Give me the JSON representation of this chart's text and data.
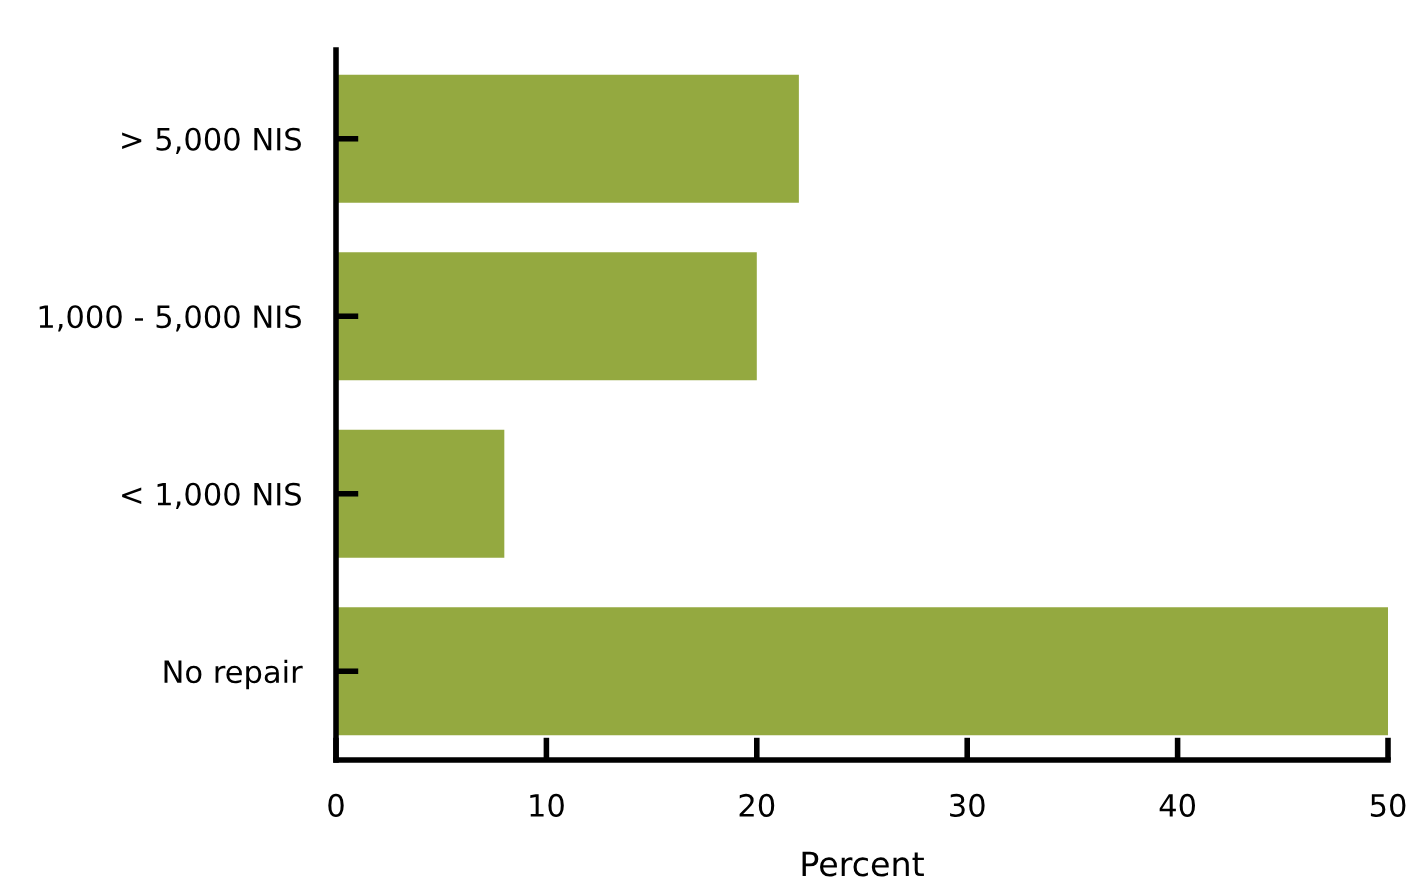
{
  "chart_data": {
    "type": "bar",
    "orientation": "horizontal",
    "xlabel": "Percent",
    "categories": [
      "> 5,000 NIS",
      "1,000 - 5,000 NIS",
      "< 1,000 NIS",
      "No repair"
    ],
    "values": [
      22,
      20,
      8,
      50
    ],
    "color": "#94a940",
    "xlim": [
      0,
      50
    ],
    "xticks": [
      0,
      10,
      20,
      30,
      40,
      50
    ],
    "grid": false,
    "legend": false
  }
}
